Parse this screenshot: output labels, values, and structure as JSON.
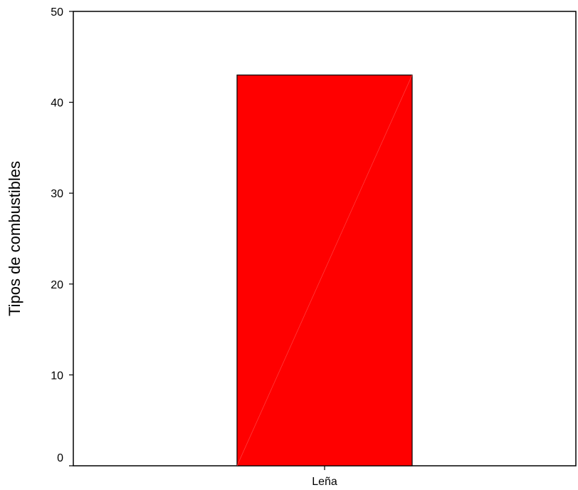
{
  "chart_data": {
    "type": "bar",
    "categories": [
      "Leña"
    ],
    "values": [
      43
    ],
    "title": "",
    "xlabel": "",
    "ylabel": "Tipos de combustibles",
    "ylim": [
      0,
      50
    ],
    "yticks": [
      0,
      10,
      20,
      30,
      40,
      50
    ],
    "grid": false,
    "bar_color": "#ff0000"
  }
}
